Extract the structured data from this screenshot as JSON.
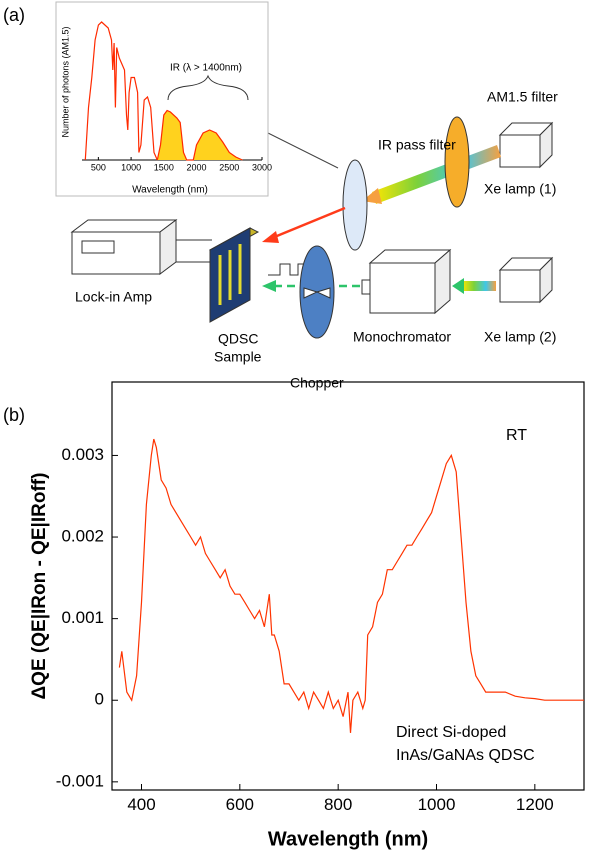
{
  "panel_labels": [
    "(a)",
    "(b)"
  ],
  "diagram": {
    "am15_filter": "AM1.5 filter",
    "ir_pass_filter": "IR pass filter",
    "xe_lamp_1": "Xe lamp (1)",
    "xe_lamp_2": "Xe lamp (2)",
    "lock_in_amp": "Lock-in Amp",
    "monochromator": "Monochromator",
    "sample": [
      "QDSC",
      "Sample"
    ],
    "chopper": "Chopper"
  },
  "chart_data": [
    {
      "type": "line",
      "xlabel": "Wavelength (nm)",
      "ylabel": "Number of photons (AM1.5)",
      "annotation": "IR (λ > 1400nm)",
      "xlim": [
        250,
        3000
      ],
      "xticks": [
        500,
        1000,
        1500,
        2000,
        2500,
        3000
      ],
      "ylim": [
        0,
        1
      ],
      "series": [
        {
          "color": "#ff2a00",
          "fill": "none",
          "x": [
            300,
            350,
            400,
            450,
            500,
            550,
            600,
            650,
            700,
            720,
            740,
            760,
            780,
            820,
            900,
            930,
            950,
            970,
            1000,
            1050,
            1100,
            1120,
            1150,
            1200,
            1250,
            1300,
            1350,
            1400
          ],
          "values": [
            0,
            0.35,
            0.55,
            0.8,
            0.9,
            0.92,
            0.9,
            0.88,
            0.8,
            0.6,
            0.78,
            0.35,
            0.75,
            0.68,
            0.6,
            0.3,
            0.2,
            0.45,
            0.55,
            0.55,
            0.45,
            0.05,
            0.1,
            0.4,
            0.42,
            0.35,
            0.05,
            0
          ]
        },
        {
          "color": "#ff2a00",
          "fill": "#ffd21e",
          "x": [
            1400,
            1450,
            1500,
            1550,
            1600,
            1700,
            1750,
            1800,
            1850,
            1950,
            2000,
            2100,
            2200,
            2300,
            2400,
            2500,
            2600,
            2700
          ],
          "values": [
            0,
            0.1,
            0.3,
            0.33,
            0.32,
            0.28,
            0.25,
            0.05,
            0,
            0,
            0.1,
            0.18,
            0.2,
            0.18,
            0.12,
            0.05,
            0.02,
            0
          ]
        }
      ]
    },
    {
      "type": "line",
      "xlabel": "Wavelength (nm)",
      "ylabel": "ΔQE (QE|IRon - QE|IRoff)",
      "color": "#ff3300",
      "annotations": [
        "RT",
        "Direct Si-doped",
        "InAs/GaNAs QDSC"
      ],
      "xlim": [
        340,
        1300
      ],
      "xticks": [
        400,
        600,
        800,
        1000,
        1200
      ],
      "ylim": [
        -0.0011,
        0.0039
      ],
      "yticks": [
        -0.001,
        0,
        0.001,
        0.002,
        0.003
      ],
      "x": [
        355,
        360,
        370,
        380,
        390,
        400,
        410,
        420,
        425,
        430,
        440,
        450,
        460,
        470,
        480,
        490,
        500,
        510,
        520,
        530,
        540,
        550,
        560,
        570,
        580,
        590,
        600,
        610,
        620,
        630,
        640,
        650,
        660,
        665,
        670,
        680,
        690,
        700,
        710,
        720,
        730,
        740,
        750,
        760,
        770,
        780,
        790,
        800,
        810,
        820,
        825,
        830,
        840,
        850,
        855,
        860,
        870,
        880,
        890,
        900,
        910,
        920,
        930,
        940,
        950,
        960,
        970,
        980,
        990,
        1000,
        1010,
        1020,
        1030,
        1040,
        1050,
        1060,
        1070,
        1080,
        1090,
        1100,
        1120,
        1140,
        1160,
        1180,
        1200,
        1220,
        1250,
        1300
      ],
      "values": [
        0.0004,
        0.0006,
        0.0001,
        0,
        0.0003,
        0.0012,
        0.0024,
        0.003,
        0.0032,
        0.0031,
        0.0027,
        0.0026,
        0.0024,
        0.0023,
        0.0022,
        0.0021,
        0.002,
        0.0019,
        0.002,
        0.0018,
        0.0017,
        0.0016,
        0.0015,
        0.0016,
        0.0014,
        0.0013,
        0.0013,
        0.0012,
        0.0011,
        0.001,
        0.0011,
        0.0009,
        0.0013,
        0.0008,
        0.0008,
        0.0006,
        0.0002,
        0.0002,
        0.0001,
        0,
        0.0001,
        -0.0001,
        0.0001,
        0,
        -0.0001,
        0.0001,
        -0.0001,
        0,
        -0.0002,
        0.0001,
        -0.0004,
        0,
        0.0001,
        -0.0001,
        0,
        0.0008,
        0.0009,
        0.0012,
        0.0013,
        0.0016,
        0.0016,
        0.0017,
        0.0018,
        0.0019,
        0.0019,
        0.002,
        0.0021,
        0.0022,
        0.0023,
        0.0025,
        0.0027,
        0.0029,
        0.003,
        0.0028,
        0.002,
        0.0012,
        0.0006,
        0.0003,
        0.0002,
        0.0001,
        0.0001,
        0.0001,
        5e-05,
        3e-05,
        2e-05,
        0,
        0,
        0
      ]
    }
  ]
}
